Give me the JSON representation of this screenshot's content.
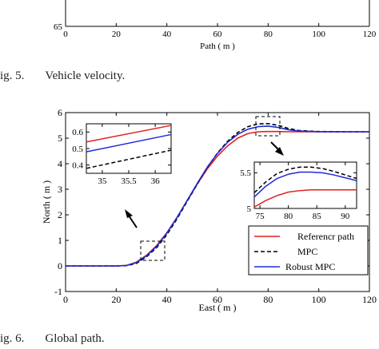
{
  "figure5": {
    "label": "ig. 5.",
    "caption": "Vehicle velocity.",
    "ylabel_tick": "65",
    "xlabel": "Path ( m )",
    "xticks": [
      "0",
      "20",
      "40",
      "60",
      "80",
      "100",
      "120"
    ]
  },
  "figure6": {
    "label": "ig. 6.",
    "caption": "Global path."
  },
  "chart_data": [
    {
      "type": "line",
      "title": "",
      "xlabel": "East ( m )",
      "ylabel": "North ( m )",
      "xlim": [
        0,
        120
      ],
      "ylim": [
        -1,
        6
      ],
      "xticks": [
        "0",
        "20",
        "40",
        "60",
        "80",
        "100",
        "120"
      ],
      "yticks": [
        "-1",
        "0",
        "1",
        "2",
        "3",
        "4",
        "5",
        "6"
      ],
      "legend_position": "bottom-right",
      "grid": false,
      "series": [
        {
          "name": "Referencr path",
          "color": "#e02020",
          "dash": "solid",
          "x": [
            0,
            20,
            24,
            28,
            32,
            36,
            40,
            44,
            48,
            52,
            56,
            60,
            64,
            68,
            72,
            76,
            80,
            84,
            88,
            92,
            100,
            110,
            120
          ],
          "y": [
            0,
            0,
            0.02,
            0.15,
            0.42,
            0.8,
            1.3,
            1.9,
            2.55,
            3.2,
            3.8,
            4.3,
            4.7,
            5.0,
            5.18,
            5.25,
            5.26,
            5.26,
            5.25,
            5.25,
            5.25,
            5.25,
            5.25
          ]
        },
        {
          "name": "MPC",
          "color": "#000000",
          "dash": "dashed",
          "x": [
            0,
            20,
            24,
            28,
            32,
            36,
            40,
            44,
            48,
            52,
            56,
            60,
            64,
            68,
            72,
            76,
            80,
            84,
            88,
            92,
            100,
            110,
            120
          ],
          "y": [
            0,
            0,
            0.01,
            0.1,
            0.36,
            0.72,
            1.22,
            1.84,
            2.52,
            3.2,
            3.86,
            4.42,
            4.88,
            5.22,
            5.45,
            5.56,
            5.57,
            5.5,
            5.38,
            5.3,
            5.26,
            5.25,
            5.25
          ]
        },
        {
          "name": "Robust MPC",
          "color": "#1f2bd6",
          "dash": "solid",
          "x": [
            0,
            20,
            24,
            28,
            32,
            36,
            40,
            44,
            48,
            52,
            56,
            60,
            64,
            68,
            72,
            76,
            80,
            84,
            88,
            92,
            100,
            110,
            120
          ],
          "y": [
            0,
            0,
            0.015,
            0.13,
            0.4,
            0.77,
            1.28,
            1.89,
            2.56,
            3.23,
            3.87,
            4.4,
            4.84,
            5.15,
            5.35,
            5.45,
            5.47,
            5.42,
            5.33,
            5.28,
            5.25,
            5.25,
            5.25
          ]
        }
      ]
    },
    {
      "type": "line",
      "title": "",
      "xlim": [
        34.7,
        36.3
      ],
      "ylim": [
        0.35,
        0.65
      ],
      "xticks": [
        "35",
        "35.5",
        "36"
      ],
      "yticks": [
        "0.4",
        "0.5",
        "0.6"
      ],
      "series": [
        {
          "name": "Referencr path",
          "color": "#e02020",
          "dash": "solid",
          "x": [
            34.7,
            36.3
          ],
          "y": [
            0.54,
            0.64
          ]
        },
        {
          "name": "MPC",
          "color": "#000000",
          "dash": "dashed",
          "x": [
            34.7,
            36.3
          ],
          "y": [
            0.38,
            0.49
          ]
        },
        {
          "name": "Robust MPC",
          "color": "#1f2bd6",
          "dash": "solid",
          "x": [
            34.7,
            36.3
          ],
          "y": [
            0.48,
            0.585
          ]
        }
      ]
    },
    {
      "type": "line",
      "title": "",
      "xlim": [
        74,
        92
      ],
      "ylim": [
        5.0,
        5.65
      ],
      "xticks": [
        "75",
        "80",
        "85",
        "90"
      ],
      "yticks": [
        "5",
        "5.5"
      ],
      "series": [
        {
          "name": "Referencr path",
          "color": "#e02020",
          "dash": "solid",
          "x": [
            74,
            76,
            78,
            80,
            82,
            84,
            86,
            92
          ],
          "y": [
            5.02,
            5.11,
            5.18,
            5.23,
            5.25,
            5.26,
            5.26,
            5.26
          ]
        },
        {
          "name": "MPC",
          "color": "#000000",
          "dash": "dashed",
          "x": [
            74,
            76,
            78,
            80,
            82,
            84,
            86,
            88,
            90,
            92
          ],
          "y": [
            5.22,
            5.37,
            5.49,
            5.55,
            5.58,
            5.58,
            5.56,
            5.52,
            5.47,
            5.42
          ]
        },
        {
          "name": "Robust MPC",
          "color": "#1f2bd6",
          "dash": "solid",
          "x": [
            74,
            76,
            78,
            80,
            82,
            84,
            86,
            88,
            90,
            92
          ],
          "y": [
            5.16,
            5.31,
            5.42,
            5.48,
            5.51,
            5.51,
            5.5,
            5.47,
            5.43,
            5.39
          ]
        }
      ]
    }
  ]
}
